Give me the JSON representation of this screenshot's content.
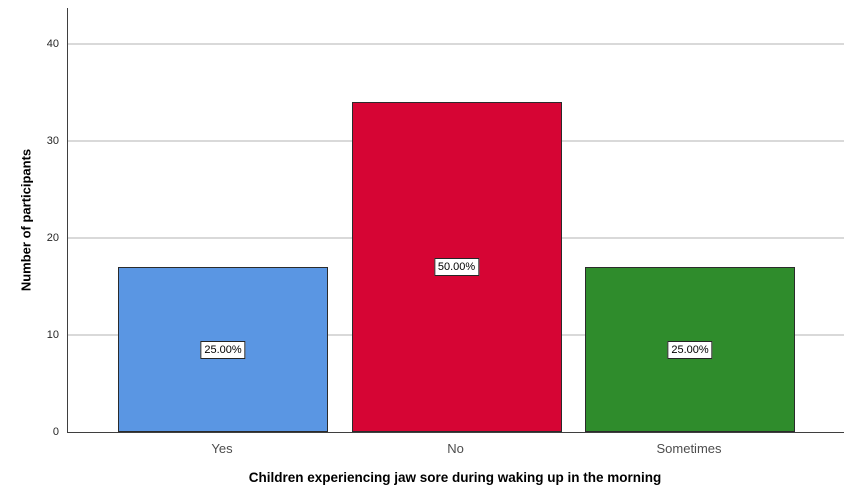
{
  "chart_data": {
    "type": "bar",
    "title": "",
    "xlabel": "Children experiencing jaw sore during waking up in the morning",
    "ylabel": "Number of participants",
    "categories": [
      "Yes",
      "No",
      "Sometimes"
    ],
    "values": [
      17,
      34,
      17
    ],
    "bar_percent_labels": [
      "25.00%",
      "50.00%",
      "25.00%"
    ],
    "bar_colors": [
      "#5a96e3",
      "#d60534",
      "#2f8c2c"
    ],
    "yticks": [
      0,
      10,
      20,
      30,
      40
    ],
    "ylim": [
      0,
      43.7
    ],
    "grid": true,
    "legend": "none",
    "gridline_color": "#d9d9d9",
    "axis_color": "#3f3f3f",
    "label_box_bg": "#ffffff",
    "label_box_border": "#262626"
  }
}
